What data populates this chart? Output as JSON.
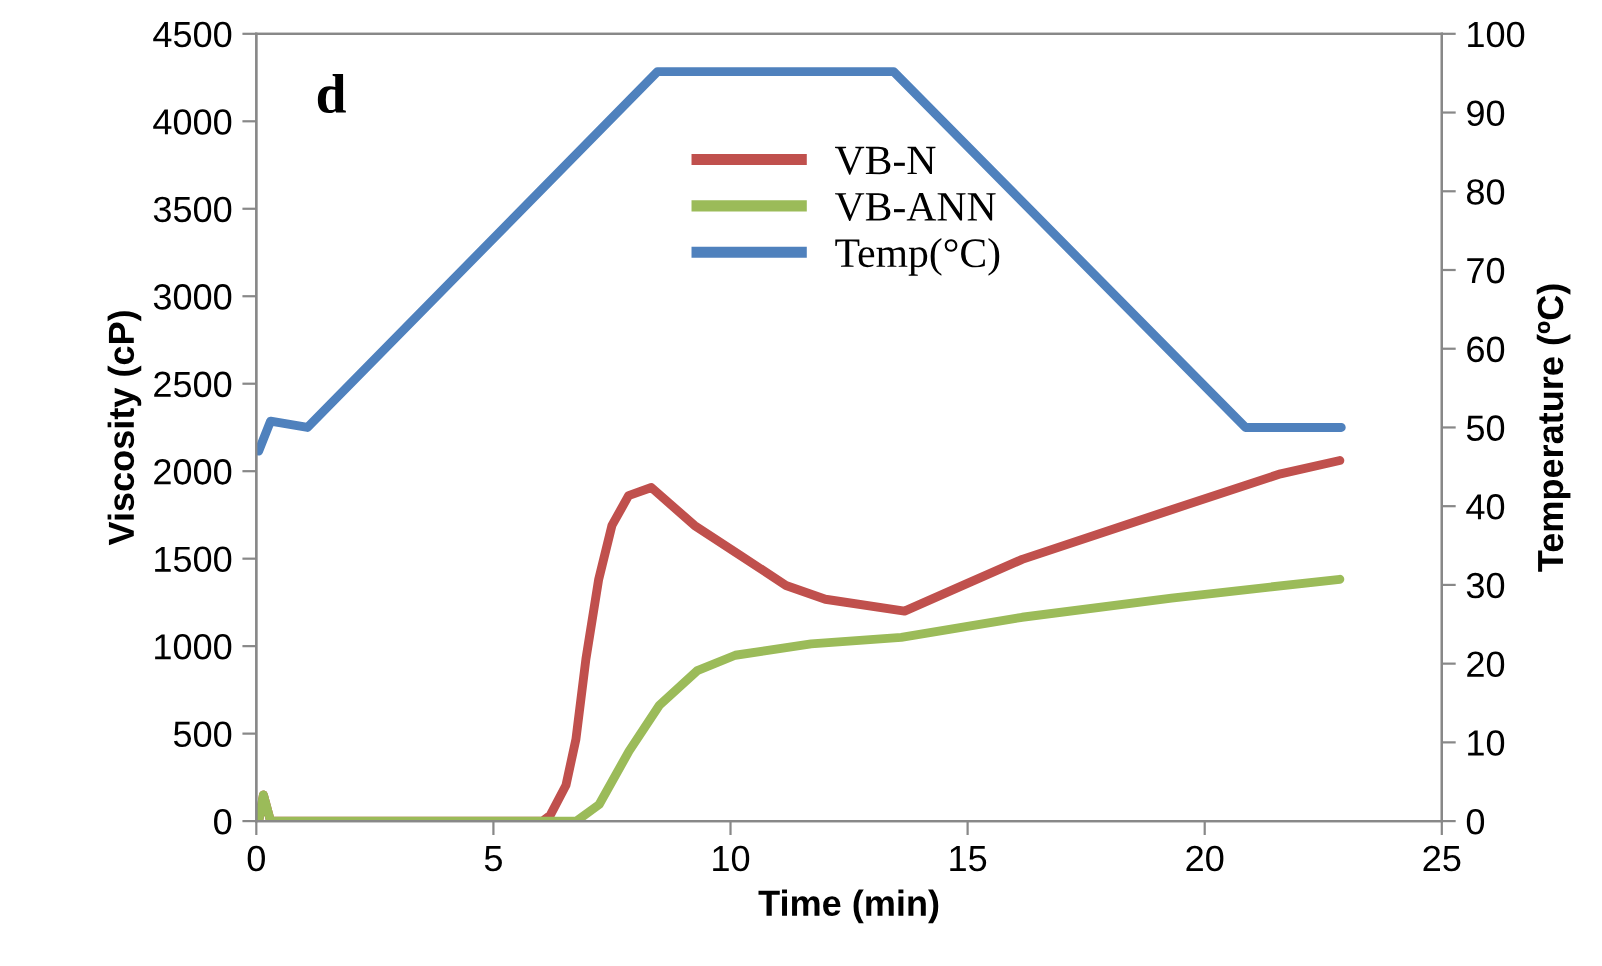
{
  "chart_data": {
    "type": "line",
    "xlabel": "Time (min)",
    "ylabel": "Viscosity (cP)",
    "y2label": "Temperature (ºC)",
    "annotations": [
      "d"
    ],
    "xlim": [
      0,
      25
    ],
    "xticks": [
      0,
      5,
      10,
      15,
      20,
      25
    ],
    "ylim": [
      0,
      4500
    ],
    "yticks": [
      0,
      500,
      1000,
      1500,
      2000,
      2500,
      3000,
      3500,
      4000,
      4500
    ],
    "y2lim": [
      0,
      100
    ],
    "y2ticks": [
      0,
      10,
      20,
      30,
      40,
      50,
      60,
      70,
      80,
      90,
      100
    ],
    "grid": false,
    "legend": "top",
    "marker": "none",
    "line_style": "solid",
    "series": [
      {
        "name": "VB-N",
        "color": "#c0504d",
        "x": [
          0.05,
          0.15,
          0.3,
          1,
          3,
          5,
          6.04,
          6.2,
          6.53,
          6.74,
          6.95,
          7.22,
          7.5,
          7.85,
          8.33,
          9.24,
          10.2,
          11.17,
          12.0,
          13.67,
          14.9,
          16.15,
          19.3,
          21.6,
          22.85
        ],
        "values": [
          0,
          150,
          0,
          0,
          0,
          0,
          0,
          34,
          205,
          468,
          925,
          1382,
          1690,
          1860,
          1907,
          1690,
          1520,
          1347,
          1268,
          1200,
          1347,
          1496,
          1780,
          1985,
          2061
        ]
      },
      {
        "name": "VB-ANN",
        "color": "#9bbb59",
        "x": [
          0.05,
          0.15,
          0.3,
          1,
          3,
          5,
          6.75,
          7.23,
          7.86,
          8.5,
          9.3,
          10.1,
          11.7,
          13.6,
          16.15,
          19.3,
          22.85
        ],
        "values": [
          0,
          150,
          0,
          0,
          0,
          0,
          0,
          95,
          400,
          662,
          860,
          948,
          1013,
          1050,
          1165,
          1275,
          1382
        ]
      },
      {
        "name": "Temp(°C)",
        "color": "#4f81bd",
        "axis": "y2",
        "x": [
          0.05,
          0.3,
          1.08,
          8.46,
          13.44,
          20.86,
          22.88
        ],
        "values": [
          47,
          50.8,
          50,
          95.2,
          95.2,
          50,
          50
        ]
      }
    ]
  }
}
